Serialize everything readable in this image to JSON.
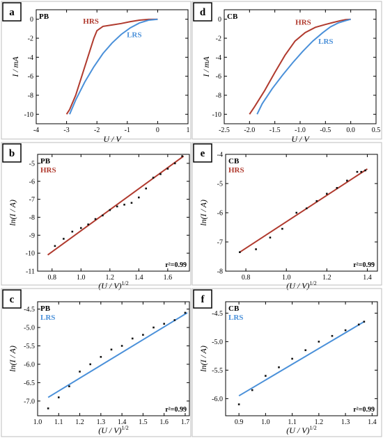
{
  "chart_data": [
    {
      "id": "a",
      "type": "line",
      "panel_letter": "a",
      "inner_label": "PB",
      "xlabel": "U / V",
      "ylabel": "I / mA",
      "xlim": [
        -4,
        1
      ],
      "ylim": [
        -11,
        1
      ],
      "xticks": [
        -4,
        -3,
        -2,
        -1,
        0,
        1
      ],
      "xtick_labels": [
        "-4",
        "-3",
        "-2",
        "-1",
        "0",
        "1"
      ],
      "yticks": [
        -10,
        -8,
        -6,
        -4,
        -2,
        0
      ],
      "ytick_labels": [
        "-10",
        "-8",
        "-6",
        "-4",
        "-2",
        "0"
      ],
      "series": [
        {
          "name": "HRS",
          "color": "#b03a2e",
          "x": [
            0,
            -0.3,
            -0.6,
            -0.9,
            -1.2,
            -1.5,
            -1.8,
            -2.0,
            -2.1,
            -2.3,
            -2.5,
            -2.7,
            -2.9,
            -3.0
          ],
          "y": [
            0,
            -0.02,
            -0.1,
            -0.25,
            -0.45,
            -0.6,
            -0.75,
            -1.2,
            -2.0,
            -4.0,
            -6.0,
            -8.0,
            -9.5,
            -10.0
          ]
        },
        {
          "name": "LRS",
          "color": "#4a90d9",
          "x": [
            0,
            -0.3,
            -0.6,
            -0.9,
            -1.2,
            -1.5,
            -1.8,
            -2.1,
            -2.4,
            -2.7,
            -2.9
          ],
          "y": [
            0,
            -0.1,
            -0.4,
            -0.9,
            -1.6,
            -2.5,
            -3.6,
            -5.0,
            -6.6,
            -8.5,
            -10.0
          ]
        }
      ],
      "series_labels": [
        "HRS",
        "LRS"
      ]
    },
    {
      "id": "d",
      "type": "line",
      "panel_letter": "d",
      "inner_label": "CB",
      "xlabel": "U / V",
      "ylabel": "I / mA",
      "xlim": [
        -2.5,
        0.5
      ],
      "ylim": [
        -11,
        1
      ],
      "xticks": [
        -2.5,
        -2.0,
        -1.5,
        -1.0,
        -0.5,
        0.0,
        0.5
      ],
      "xtick_labels": [
        "-2.5",
        "-2.0",
        "-1.5",
        "-1.0",
        "-0.5",
        "0.0",
        "0.5"
      ],
      "yticks": [
        -10,
        -8,
        -6,
        -4,
        -2,
        0
      ],
      "ytick_labels": [
        "-10",
        "-8",
        "-6",
        "-4",
        "-2",
        "0"
      ],
      "series": [
        {
          "name": "HRS",
          "color": "#b03a2e",
          "x": [
            0,
            -0.1,
            -0.2,
            -0.35,
            -0.5,
            -0.7,
            -0.9,
            -1.1,
            -1.3,
            -1.5,
            -1.7,
            -1.9,
            -2.0
          ],
          "y": [
            0,
            -0.05,
            -0.15,
            -0.35,
            -0.55,
            -0.85,
            -1.4,
            -2.3,
            -3.8,
            -5.6,
            -7.5,
            -9.2,
            -10.0
          ]
        },
        {
          "name": "LRS",
          "color": "#4a90d9",
          "x": [
            0,
            -0.1,
            -0.25,
            -0.4,
            -0.55,
            -0.75,
            -0.95,
            -1.15,
            -1.35,
            -1.55,
            -1.75,
            -1.85
          ],
          "y": [
            0,
            -0.15,
            -0.4,
            -0.8,
            -1.4,
            -2.3,
            -3.4,
            -4.6,
            -5.9,
            -7.3,
            -8.9,
            -10.0
          ]
        }
      ],
      "series_labels": [
        "HRS",
        "LRS"
      ]
    },
    {
      "id": "b",
      "type": "scatter",
      "panel_letter": "b",
      "inner_label": "PB",
      "series_label": "HRS",
      "xlabel": "(U / V)",
      "xlabel_exp": "1/2",
      "ylabel": "ln(I / A)",
      "xlim": [
        0.7,
        1.75
      ],
      "ylim": [
        -11,
        -4.5
      ],
      "xticks": [
        0.8,
        1.0,
        1.2,
        1.4,
        1.6
      ],
      "xtick_labels": [
        "0.8",
        "1.0",
        "1.2",
        "1.4",
        "1.6"
      ],
      "yticks": [
        -11,
        -10,
        -9,
        -8,
        -7,
        -6,
        -5
      ],
      "ytick_labels": [
        "-11",
        "-10",
        "-9",
        "-8",
        "-7",
        "-6",
        "-5"
      ],
      "fit_color": "#b03a2e",
      "points": {
        "x": [
          0.82,
          0.88,
          0.94,
          1.0,
          1.05,
          1.1,
          1.15,
          1.2,
          1.25,
          1.3,
          1.35,
          1.4,
          1.45,
          1.5,
          1.55,
          1.6,
          1.65,
          1.7
        ],
        "y": [
          -9.6,
          -9.2,
          -8.8,
          -8.6,
          -8.4,
          -8.1,
          -7.9,
          -7.6,
          -7.4,
          -7.3,
          -7.2,
          -6.9,
          -6.4,
          -5.8,
          -5.6,
          -5.3,
          -5.0,
          -4.6
        ]
      },
      "fit": {
        "x": [
          0.77,
          1.71
        ],
        "y": [
          -10.1,
          -4.6
        ]
      },
      "annotation": "r²=0.99"
    },
    {
      "id": "e",
      "type": "scatter",
      "panel_letter": "e",
      "inner_label": "CB",
      "series_label": "HRS",
      "xlabel": "(U / V)",
      "xlabel_exp": "1/2",
      "ylabel": "ln(I / A)",
      "xlim": [
        0.7,
        1.45
      ],
      "ylim": [
        -8,
        -4
      ],
      "xticks": [
        0.8,
        1.0,
        1.2,
        1.4
      ],
      "xtick_labels": [
        "0.8",
        "1.0",
        "1.2",
        "1.4"
      ],
      "yticks": [
        -8,
        -7,
        -6,
        -5,
        -4
      ],
      "ytick_labels": [
        "-8",
        "-7",
        "-6",
        "-5",
        "-4"
      ],
      "fit_color": "#b03a2e",
      "points": {
        "x": [
          0.77,
          0.85,
          0.92,
          0.98,
          1.05,
          1.1,
          1.15,
          1.2,
          1.25,
          1.3,
          1.35,
          1.37,
          1.39
        ],
        "y": [
          -7.35,
          -7.25,
          -6.85,
          -6.55,
          -6.0,
          -5.85,
          -5.6,
          -5.35,
          -5.15,
          -4.9,
          -4.6,
          -4.6,
          -4.55
        ]
      },
      "fit": {
        "x": [
          0.77,
          1.4
        ],
        "y": [
          -7.35,
          -4.5
        ]
      },
      "annotation": "r²=0.99"
    },
    {
      "id": "c",
      "type": "scatter",
      "panel_letter": "c",
      "inner_label": "PB",
      "series_label": "LRS",
      "xlabel": "(U / V)",
      "xlabel_exp": "1/2",
      "ylabel": "ln(I / A)",
      "xlim": [
        1.0,
        1.72
      ],
      "ylim": [
        -7.4,
        -4.3
      ],
      "xticks": [
        1.0,
        1.1,
        1.2,
        1.3,
        1.4,
        1.5,
        1.6,
        1.7
      ],
      "xtick_labels": [
        "1.0",
        "1.1",
        "1.2",
        "1.3",
        "1.4",
        "1.5",
        "1.6",
        "1.7"
      ],
      "yticks": [
        -7.0,
        -6.5,
        -6.0,
        -5.5,
        -5.0,
        -4.5
      ],
      "ytick_labels": [
        "-7.0",
        "-6.5",
        "-6.0",
        "-5.5",
        "-5.0",
        "-4.5"
      ],
      "fit_color": "#4a90d9",
      "points": {
        "x": [
          1.05,
          1.1,
          1.15,
          1.2,
          1.25,
          1.3,
          1.35,
          1.4,
          1.45,
          1.5,
          1.55,
          1.6,
          1.65,
          1.7
        ],
        "y": [
          -7.2,
          -6.9,
          -6.6,
          -6.2,
          -6.0,
          -5.8,
          -5.6,
          -5.5,
          -5.3,
          -5.2,
          -5.0,
          -4.9,
          -4.8,
          -4.6
        ]
      },
      "fit": {
        "x": [
          1.05,
          1.71
        ],
        "y": [
          -6.9,
          -4.6
        ]
      },
      "annotation": "r²=0.99"
    },
    {
      "id": "f",
      "type": "scatter",
      "panel_letter": "f",
      "inner_label": "CB",
      "series_label": "LRS",
      "xlabel": "(U / V)",
      "xlabel_exp": "1/2",
      "ylabel": "ln(I / A)",
      "xlim": [
        0.85,
        1.42
      ],
      "ylim": [
        -6.3,
        -4.3
      ],
      "xticks": [
        0.9,
        1.0,
        1.1,
        1.2,
        1.3,
        1.4
      ],
      "xtick_labels": [
        "0.9",
        "1.0",
        "1.1",
        "1.2",
        "1.3",
        "1.4"
      ],
      "yticks": [
        -6.0,
        -5.5,
        -5.0,
        -4.5
      ],
      "ytick_labels": [
        "-6.0",
        "-5.5",
        "-5.0",
        "-4.5"
      ],
      "fit_color": "#4a90d9",
      "points": {
        "x": [
          0.9,
          0.95,
          1.0,
          1.05,
          1.1,
          1.15,
          1.2,
          1.25,
          1.3,
          1.35,
          1.37
        ],
        "y": [
          -6.1,
          -5.85,
          -5.6,
          -5.45,
          -5.3,
          -5.15,
          -5.0,
          -4.9,
          -4.8,
          -4.7,
          -4.65
        ]
      },
      "fit": {
        "x": [
          0.9,
          1.37
        ],
        "y": [
          -5.95,
          -4.65
        ]
      },
      "annotation": "r²=0.99"
    }
  ]
}
